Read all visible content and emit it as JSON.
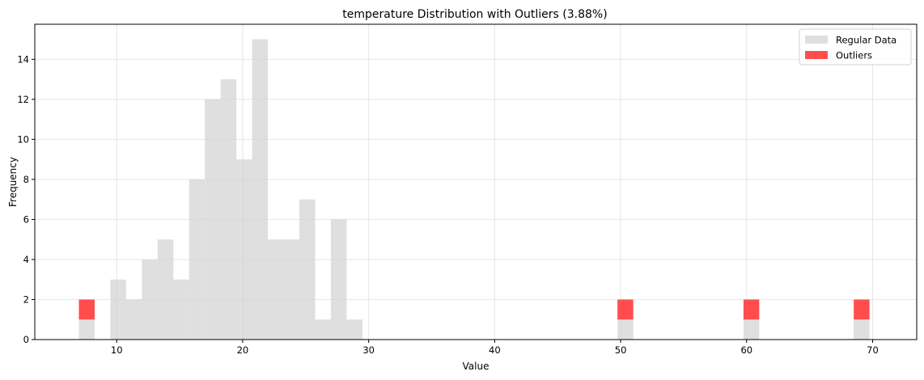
{
  "chart_data": {
    "type": "bar",
    "title": "temperature Distribution with Outliers (3.88%)",
    "xlabel": "Value",
    "ylabel": "Frequency",
    "xlim": [
      3.5,
      73.5
    ],
    "ylim": [
      0,
      15.75
    ],
    "xticks": [
      10,
      20,
      30,
      40,
      50,
      60,
      70
    ],
    "yticks": [
      0,
      2,
      4,
      6,
      8,
      10,
      12,
      14
    ],
    "grid": true,
    "legend_position": "top-right",
    "bin_width": 1.25,
    "series": [
      {
        "name": "Regular Data",
        "color": "#d3d3d3",
        "bins": [
          {
            "x": 7.0,
            "y": 1
          },
          {
            "x": 9.5,
            "y": 3
          },
          {
            "x": 10.75,
            "y": 2
          },
          {
            "x": 12.0,
            "y": 4
          },
          {
            "x": 13.25,
            "y": 5
          },
          {
            "x": 14.5,
            "y": 3
          },
          {
            "x": 15.75,
            "y": 8
          },
          {
            "x": 17.0,
            "y": 12
          },
          {
            "x": 18.25,
            "y": 13
          },
          {
            "x": 19.5,
            "y": 9
          },
          {
            "x": 20.75,
            "y": 15
          },
          {
            "x": 22.0,
            "y": 5
          },
          {
            "x": 23.25,
            "y": 5
          },
          {
            "x": 24.5,
            "y": 7
          },
          {
            "x": 25.75,
            "y": 1
          },
          {
            "x": 27.0,
            "y": 6
          },
          {
            "x": 28.25,
            "y": 1
          },
          {
            "x": 49.75,
            "y": 1
          },
          {
            "x": 59.75,
            "y": 1
          },
          {
            "x": 68.5,
            "y": 1
          }
        ]
      },
      {
        "name": "Outliers",
        "color": "#ff4d4d",
        "bins": [
          {
            "x": 7.0,
            "y": 1,
            "base": 1
          },
          {
            "x": 49.75,
            "y": 1,
            "base": 1
          },
          {
            "x": 59.75,
            "y": 1,
            "base": 1
          },
          {
            "x": 68.5,
            "y": 1,
            "base": 1
          }
        ]
      }
    ]
  }
}
